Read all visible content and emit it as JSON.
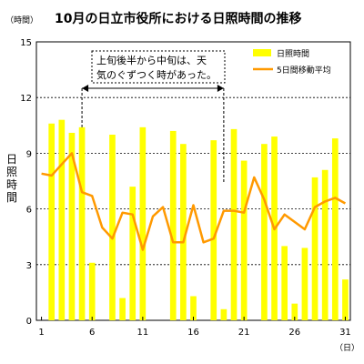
{
  "chart_data": {
    "type": "bar",
    "title": "10月の日立市役所における日照時間の推移",
    "y_unit_label": "（時間）",
    "x_unit_label": "（日）",
    "ylabel": "日照時間",
    "ylim": [
      0,
      15
    ],
    "yticks": [
      0,
      3,
      6,
      9,
      12,
      15
    ],
    "xlim": [
      1,
      31
    ],
    "xticks": [
      1,
      6,
      11,
      16,
      21,
      26,
      31
    ],
    "grid": "horizontal-dotted",
    "legend_position": "top-right",
    "annotation": {
      "line1": "上旬後半から中旬は、天",
      "line2": "気のぐずつく時があった。",
      "from_day": 5,
      "to_day": 19
    },
    "series": [
      {
        "name": "日照時間",
        "type": "bar",
        "color": "#ffff00",
        "x": [
          1,
          2,
          3,
          4,
          5,
          6,
          7,
          8,
          9,
          10,
          11,
          12,
          13,
          14,
          15,
          16,
          17,
          18,
          19,
          20,
          21,
          22,
          23,
          24,
          25,
          26,
          27,
          28,
          29,
          30,
          31
        ],
        "values": [
          0,
          10.6,
          10.8,
          10.1,
          10.4,
          3.1,
          0,
          10.0,
          1.2,
          7.2,
          10.4,
          0,
          0,
          10.2,
          9.5,
          1.3,
          0,
          9.7,
          0.6,
          10.3,
          8.6,
          0,
          9.5,
          9.9,
          4.0,
          0.9,
          3.9,
          7.7,
          8.1,
          9.8,
          2.2
        ]
      },
      {
        "name": "5日間移動平均",
        "type": "line",
        "color": "#ff9900",
        "x": [
          1,
          2,
          3,
          4,
          5,
          6,
          7,
          8,
          9,
          10,
          11,
          12,
          13,
          14,
          15,
          16,
          17,
          18,
          19,
          20,
          21,
          22,
          23,
          24,
          25,
          26,
          27,
          28,
          29,
          30,
          31
        ],
        "values": [
          7.9,
          7.8,
          8.4,
          9.0,
          6.9,
          6.7,
          5.0,
          4.4,
          5.8,
          5.7,
          3.8,
          5.6,
          6.1,
          4.2,
          4.2,
          6.2,
          4.2,
          4.4,
          5.9,
          5.9,
          5.8,
          7.7,
          6.5,
          4.9,
          5.7,
          5.3,
          4.9,
          6.1,
          6.4,
          6.6,
          6.3
        ]
      }
    ]
  }
}
